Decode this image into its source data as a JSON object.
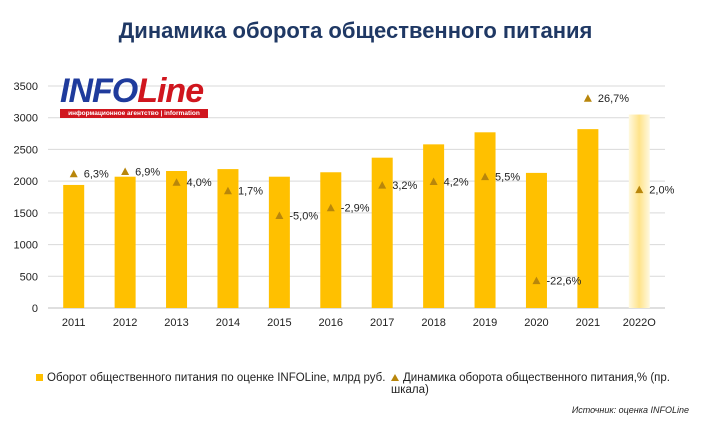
{
  "page": {
    "title": "Динамика оборота общественного питания",
    "source": "Источник:  оценка INFOLine"
  },
  "logo": {
    "text_blue": "INFO",
    "text_red": "Line",
    "tagline": "информационное агентство | information agency"
  },
  "legend": {
    "bars_label": "Оборот общественного питания по оценке INFOLine, млрд руб.",
    "markers_label": "Динамика оборота общественного питания,% (пр. шкала)"
  },
  "colors": {
    "bar": "#ffc000",
    "bar_estimate_light": "#fff2cc",
    "marker": "#b8860b",
    "title": "#1f3864"
  },
  "chart_data": {
    "type": "bar",
    "categories": [
      "2011",
      "2012",
      "2013",
      "2014",
      "2015",
      "2016",
      "2017",
      "2018",
      "2019",
      "2020",
      "2021",
      "2022О"
    ],
    "series": [
      {
        "name": "Оборот общественного питания по оценке INFOLine, млрд руб.",
        "type": "bar",
        "axis": "left",
        "values": [
          1940,
          2070,
          2160,
          2190,
          2070,
          2140,
          2370,
          2580,
          2770,
          2130,
          2820,
          3050
        ]
      },
      {
        "name": "Динамика оборота общественного питания,% (пр. шкала)",
        "type": "scatter",
        "axis": "right",
        "values": [
          6.3,
          6.9,
          4.0,
          1.7,
          -5.0,
          -2.9,
          3.2,
          4.2,
          5.5,
          -22.6,
          26.7,
          2.0
        ],
        "labels": [
          "6,3%",
          "6,9%",
          "4,0%",
          "1,7%",
          "-5,0%",
          "-2,9%",
          "3,2%",
          "4,2%",
          "5,5%",
          "-22,6%",
          "26,7%",
          "2,0%"
        ]
      }
    ],
    "y_ticks": [
      "0",
      "500",
      "1000",
      "1500",
      "2000",
      "2500",
      "3000",
      "3500"
    ],
    "ylim": [
      0,
      3500
    ],
    "y2lim": [
      -30,
      30
    ],
    "estimate_category": "2022О",
    "grid": true,
    "legend_position": "bottom"
  }
}
